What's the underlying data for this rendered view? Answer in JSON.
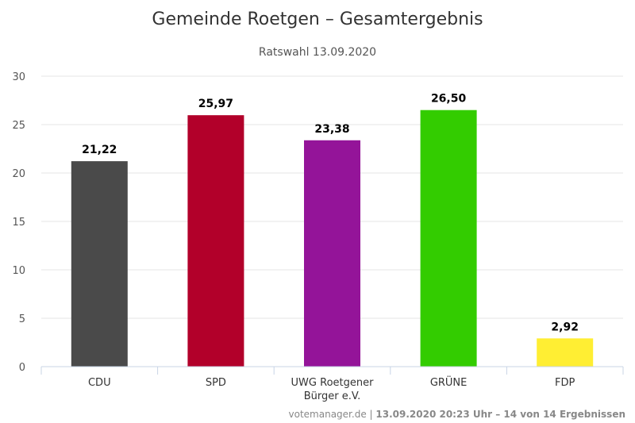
{
  "chart_data": {
    "type": "bar",
    "title": "Gemeinde Roetgen – Gesamtergebnis",
    "subtitle": "Ratswahl 13.09.2020",
    "categories": [
      [
        "CDU"
      ],
      [
        "SPD"
      ],
      [
        "UWG Roetgener",
        "Bürger e.V."
      ],
      [
        "GRÜNE"
      ],
      [
        "FDP"
      ]
    ],
    "values": [
      21.22,
      25.97,
      23.38,
      26.5,
      2.92
    ],
    "data_labels": [
      "21,22",
      "25,97",
      "23,38",
      "26,50",
      "2,92"
    ],
    "colors": [
      "#4a4a4a",
      "#b2002a",
      "#941499",
      "#33cc00",
      "#ffee33"
    ],
    "ylim": [
      0,
      30
    ],
    "yticks": [
      0,
      5,
      10,
      15,
      20,
      25,
      30
    ],
    "xlabel": "",
    "ylabel": "",
    "grid": true,
    "legend": "none"
  },
  "credits": {
    "source": "votemanager.de",
    "separator": " | ",
    "timestamp": "13.09.2020 20:23 Uhr – 14 von 14 Ergebnissen"
  }
}
